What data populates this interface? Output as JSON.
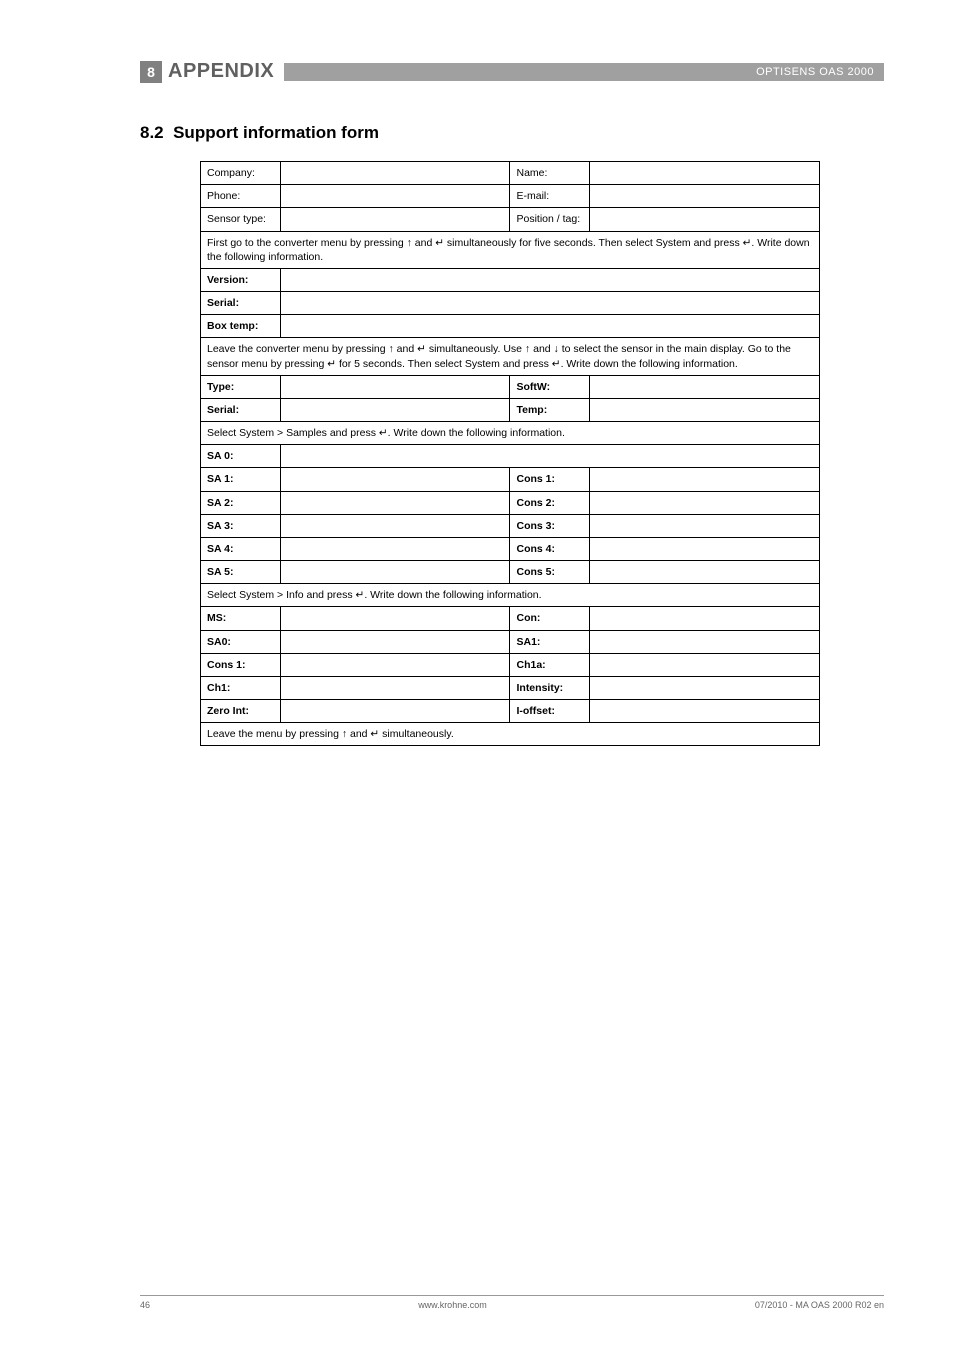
{
  "header": {
    "section_number": "8",
    "section_title": "APPENDIX",
    "product": "OPTISENS OAS 2000"
  },
  "subsection": {
    "number": "8.2",
    "title": "Support information form"
  },
  "form": {
    "company": "Company:",
    "name": "Name:",
    "phone": "Phone:",
    "email": "E-mail:",
    "sensor_type": "Sensor type:",
    "position_tag": "Position / tag:",
    "instr1": "First go to the converter menu by pressing ↑ and ↵ simultaneously for five seconds. Then select System and press ↵. Write down the following information.",
    "version": "Version:",
    "serial1": "Serial:",
    "box_temp": "Box temp:",
    "instr2": "Leave the converter menu by pressing ↑ and ↵ simultaneously. Use ↑ and ↓ to select the sensor in the main display. Go to the sensor menu by pressing ↵ for 5 seconds. Then select System and press ↵. Write down the following information.",
    "type": "Type:",
    "softw": "SoftW:",
    "serial2": "Serial:",
    "temp": "Temp:",
    "instr3": "Select System > Samples and press ↵. Write down the following information.",
    "sa0": "SA 0:",
    "sa1": "SA 1:",
    "cons1": "Cons 1:",
    "sa2": "SA 2:",
    "cons2": "Cons 2:",
    "sa3": "SA 3:",
    "cons3": "Cons 3:",
    "sa4": "SA 4:",
    "cons4": "Cons 4:",
    "sa5": "SA 5:",
    "cons5": "Cons 5:",
    "instr4": "Select System > Info and press ↵. Write down the following information.",
    "ms": "MS:",
    "con": "Con:",
    "sa0b": "SA0:",
    "sa1b": "SA1:",
    "cons1b": "Cons 1:",
    "ch1a": "Ch1a:",
    "ch1": "Ch1:",
    "intensity": "Intensity:",
    "zero_int": "Zero Int:",
    "i_offset": "I-offset:",
    "instr5": "Leave the menu by pressing ↑ and ↵ simultaneously."
  },
  "footer": {
    "page": "46",
    "site": "www.krohne.com",
    "doc": "07/2010 - MA OAS 2000 R02 en"
  }
}
